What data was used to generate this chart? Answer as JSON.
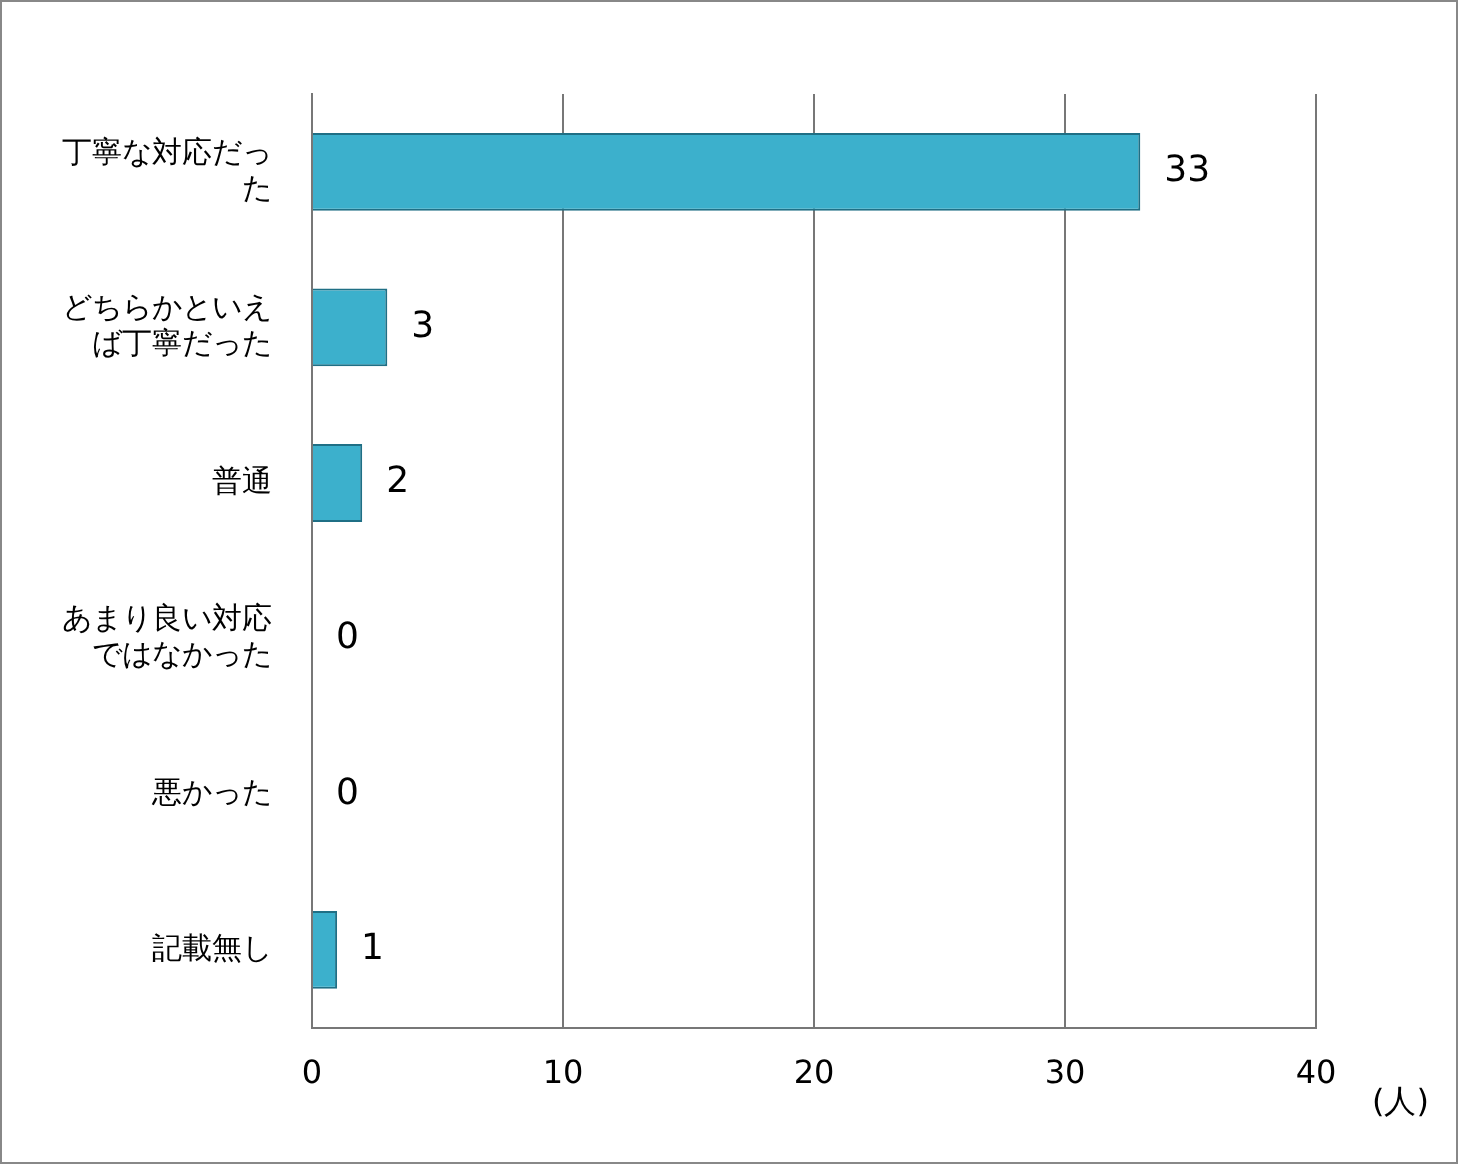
{
  "chart_data": {
    "type": "bar",
    "orientation": "horizontal",
    "categories": [
      "丁寧な対応だった",
      "どちらかといえば丁寧だった",
      "普通",
      "あまり良い対応ではなかった",
      "悪かった",
      "記載無し"
    ],
    "values": [
      33,
      3,
      2,
      0,
      0,
      1
    ],
    "color": "#3cb0cc",
    "xlim": [
      0,
      40
    ],
    "xticks": [
      0,
      10,
      20,
      30,
      40
    ],
    "xlabel": "(人)",
    "grid": "x",
    "data_labels": true,
    "legend": false
  }
}
